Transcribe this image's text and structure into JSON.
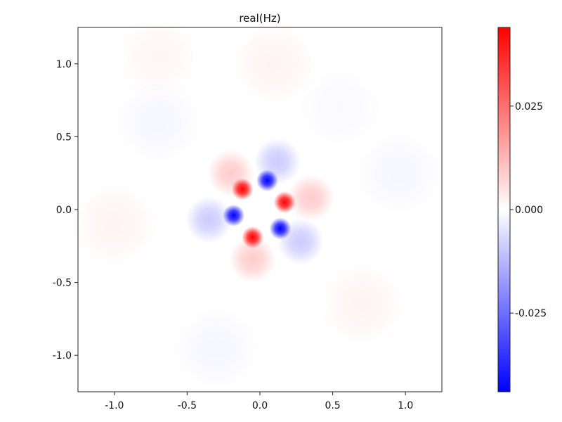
{
  "chart_data": {
    "type": "heatmap",
    "title": "real(Hz)",
    "xlabel": "",
    "ylabel": "",
    "xlim": [
      -1.25,
      1.25
    ],
    "ylim": [
      -1.25,
      1.25
    ],
    "x_ticks": [
      -1.0,
      -0.5,
      0.0,
      0.5,
      1.0
    ],
    "x_tick_labels": [
      "-1.0",
      "-0.5",
      "0.0",
      "0.5",
      "1.0"
    ],
    "y_ticks": [
      1.0,
      0.5,
      0.0,
      -0.5,
      -1.0
    ],
    "y_tick_labels": [
      "1.0",
      "0.5",
      "0.0",
      "-0.5",
      "-1.0"
    ],
    "grid": false,
    "colormap": {
      "name": "bwr",
      "low_color": "#0000ff",
      "mid_color": "#ffffff",
      "high_color": "#ff0000",
      "vmin": -0.044,
      "vmax": 0.044
    },
    "colorbar": {
      "ticks": [
        0.025,
        0.0,
        -0.025
      ],
      "tick_labels": [
        "0.025",
        "0.000",
        "-0.025"
      ]
    },
    "features": [
      {
        "kind": "lobe",
        "x": -0.12,
        "y": 0.14,
        "value": 0.044
      },
      {
        "kind": "lobe",
        "x": 0.05,
        "y": 0.2,
        "value": -0.044
      },
      {
        "kind": "lobe",
        "x": 0.17,
        "y": 0.05,
        "value": 0.044
      },
      {
        "kind": "lobe",
        "x": 0.14,
        "y": -0.13,
        "value": -0.044
      },
      {
        "kind": "lobe",
        "x": -0.05,
        "y": -0.19,
        "value": 0.044
      },
      {
        "kind": "lobe",
        "x": -0.18,
        "y": -0.04,
        "value": -0.044
      },
      {
        "kind": "halo",
        "x": -0.2,
        "y": 0.25,
        "value": 0.009
      },
      {
        "kind": "halo",
        "x": 0.12,
        "y": 0.33,
        "value": -0.009
      },
      {
        "kind": "halo",
        "x": 0.35,
        "y": 0.08,
        "value": 0.009
      },
      {
        "kind": "halo",
        "x": 0.28,
        "y": -0.22,
        "value": -0.009
      },
      {
        "kind": "halo",
        "x": -0.05,
        "y": -0.34,
        "value": 0.009
      },
      {
        "kind": "halo",
        "x": -0.35,
        "y": -0.07,
        "value": -0.009
      },
      {
        "kind": "ripple",
        "x": -1.0,
        "y": -0.1,
        "value": 0.002
      },
      {
        "kind": "ripple",
        "x": 0.7,
        "y": -0.65,
        "value": 0.002
      },
      {
        "kind": "ripple",
        "x": 0.1,
        "y": 1.0,
        "value": 0.002
      },
      {
        "kind": "ripple",
        "x": -0.7,
        "y": 1.05,
        "value": 0.0015
      },
      {
        "kind": "ripple",
        "x": -0.7,
        "y": 0.6,
        "value": -0.0015
      },
      {
        "kind": "ripple",
        "x": 0.95,
        "y": 0.25,
        "value": -0.0015
      },
      {
        "kind": "ripple",
        "x": -0.3,
        "y": -0.95,
        "value": -0.0015
      },
      {
        "kind": "ripple",
        "x": 0.55,
        "y": 0.7,
        "value": -0.001
      }
    ]
  }
}
